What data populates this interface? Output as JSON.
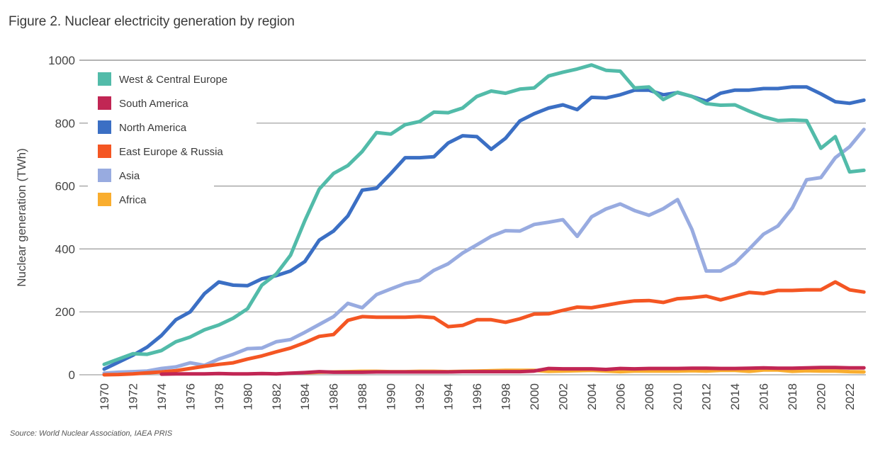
{
  "figure": {
    "title": "Figure 2. Nuclear electricity generation by region",
    "source": "Source: World Nuclear Association, IAEA PRIS"
  },
  "chart_data": {
    "type": "line",
    "title": "Figure 2. Nuclear electricity generation by region",
    "xlabel": "",
    "ylabel": "Nuclear generation (TWh)",
    "ylim": [
      0,
      1000
    ],
    "yticks": [
      0,
      200,
      400,
      600,
      800,
      1000
    ],
    "xlim": [
      1970,
      2023
    ],
    "xticks": [
      1970,
      1972,
      1974,
      1976,
      1978,
      1980,
      1982,
      1984,
      1986,
      1988,
      1990,
      1992,
      1994,
      1996,
      1998,
      2000,
      2002,
      2004,
      2006,
      2008,
      2010,
      2012,
      2014,
      2016,
      2018,
      2020,
      2022
    ],
    "grid": "horizontal",
    "legend_position": "top-left",
    "x": [
      1970,
      1971,
      1972,
      1973,
      1974,
      1975,
      1976,
      1977,
      1978,
      1979,
      1980,
      1981,
      1982,
      1983,
      1984,
      1985,
      1986,
      1987,
      1988,
      1989,
      1990,
      1991,
      1992,
      1993,
      1994,
      1995,
      1996,
      1997,
      1998,
      1999,
      2000,
      2001,
      2002,
      2003,
      2004,
      2005,
      2006,
      2007,
      2008,
      2009,
      2010,
      2011,
      2012,
      2013,
      2014,
      2015,
      2016,
      2017,
      2018,
      2019,
      2020,
      2021,
      2022,
      2023
    ],
    "series": [
      {
        "name": "West & Central Europe",
        "color": "#52bba9",
        "start_year": 1970,
        "values": [
          33,
          50,
          67,
          65,
          77,
          105,
          120,
          143,
          158,
          180,
          210,
          285,
          320,
          380,
          490,
          590,
          640,
          665,
          710,
          770,
          765,
          795,
          805,
          835,
          833,
          848,
          885,
          902,
          895,
          908,
          912,
          950,
          962,
          972,
          985,
          968,
          965,
          912,
          915,
          875,
          898,
          885,
          862,
          857,
          858,
          838,
          820,
          808,
          810,
          808,
          720,
          757,
          645,
          650
        ]
      },
      {
        "name": "South America",
        "color": "#c12654",
        "start_year": 1974,
        "values": [
          2,
          3,
          3,
          3,
          4,
          3,
          3,
          4,
          3,
          5,
          7,
          10,
          8,
          8,
          8,
          9,
          9,
          9,
          9,
          9,
          9,
          10,
          10,
          10,
          10,
          10,
          12,
          20,
          19,
          19,
          19,
          17,
          20,
          19,
          20,
          20,
          20,
          21,
          21,
          20,
          20,
          21,
          22,
          21,
          21,
          22,
          23,
          23,
          22,
          22
        ]
      },
      {
        "name": "North America",
        "color": "#3b6fc4",
        "start_year": 1970,
        "values": [
          18,
          40,
          62,
          88,
          125,
          175,
          200,
          258,
          295,
          285,
          283,
          305,
          315,
          330,
          360,
          428,
          457,
          505,
          587,
          593,
          640,
          690,
          690,
          693,
          737,
          760,
          757,
          717,
          752,
          807,
          830,
          848,
          858,
          843,
          882,
          880,
          890,
          905,
          905,
          890,
          897,
          885,
          870,
          895,
          905,
          905,
          910,
          910,
          915,
          915,
          893,
          868,
          863,
          873
        ]
      },
      {
        "name": "East Europe & Russia",
        "color": "#f45623",
        "start_year": 1970,
        "values": [
          0,
          1,
          3,
          6,
          9,
          13,
          20,
          27,
          33,
          38,
          50,
          60,
          73,
          85,
          102,
          122,
          128,
          173,
          185,
          183,
          183,
          183,
          185,
          182,
          153,
          157,
          175,
          175,
          167,
          178,
          193,
          194,
          205,
          215,
          213,
          221,
          229,
          235,
          236,
          230,
          242,
          245,
          250,
          238,
          250,
          262,
          258,
          268,
          268,
          270,
          270,
          295,
          270,
          263
        ]
      },
      {
        "name": "Asia",
        "color": "#98abe0",
        "start_year": 1970,
        "values": [
          5,
          8,
          10,
          12,
          20,
          25,
          38,
          30,
          50,
          65,
          83,
          85,
          105,
          112,
          135,
          160,
          185,
          227,
          213,
          255,
          273,
          290,
          300,
          332,
          353,
          387,
          413,
          440,
          458,
          457,
          478,
          485,
          493,
          440,
          502,
          527,
          543,
          522,
          507,
          528,
          557,
          462,
          330,
          330,
          355,
          400,
          447,
          473,
          530,
          620,
          627,
          690,
          725,
          780
        ]
      },
      {
        "name": "Africa",
        "color": "#f9ad2e",
        "start_year": 1984,
        "values": [
          6,
          8,
          9,
          10,
          11,
          11,
          10,
          10,
          11,
          11,
          10,
          11,
          12,
          13,
          14,
          14,
          14,
          11,
          12,
          13,
          14,
          12,
          10,
          12,
          12,
          12,
          12,
          13,
          12,
          14,
          14,
          11,
          15,
          15,
          11,
          13,
          12,
          12,
          10,
          9
        ]
      }
    ]
  }
}
